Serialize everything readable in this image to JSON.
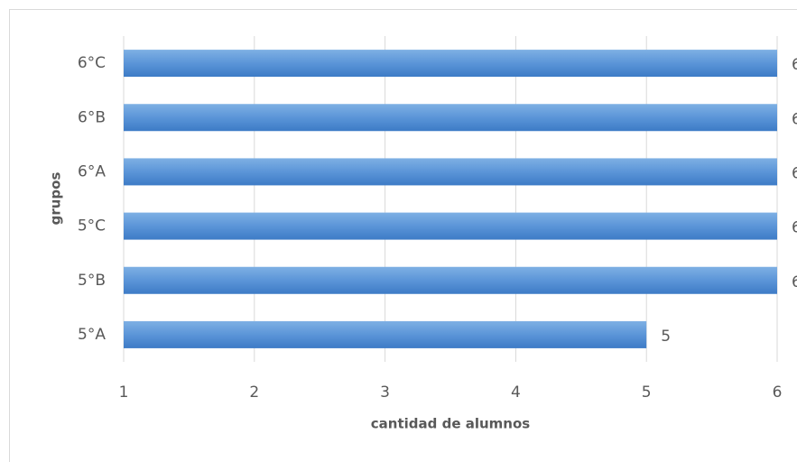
{
  "chart_data": {
    "type": "barh",
    "categories": [
      "5°A",
      "5°B",
      "5°C",
      "6°A",
      "6°B",
      "6°C"
    ],
    "values": [
      5,
      6,
      6,
      6,
      6,
      6
    ],
    "color": "#4a86cf",
    "xlim": [
      1,
      6
    ],
    "xticks": [
      1,
      2,
      3,
      4,
      5,
      6
    ],
    "xlabel": "cantidad de alumnos",
    "ylabel": "grupos",
    "grid": true
  }
}
